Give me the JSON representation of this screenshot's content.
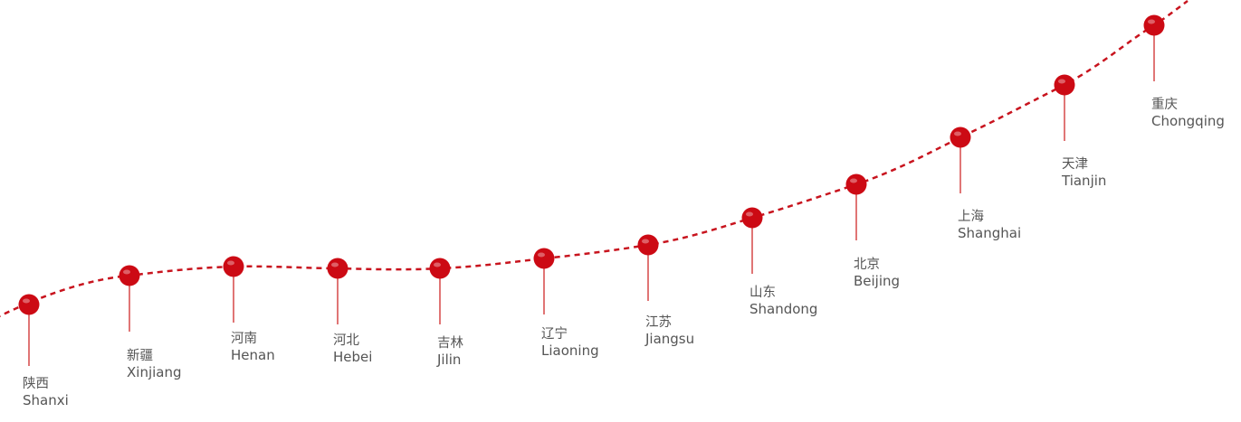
{
  "accent_color": "#cc0a14",
  "stops": [
    {
      "cn": "陕西",
      "en": "Shanxi"
    },
    {
      "cn": "新疆",
      "en": "Xinjiang"
    },
    {
      "cn": "河南",
      "en": "Henan"
    },
    {
      "cn": "河北",
      "en": "Hebei"
    },
    {
      "cn": "吉林",
      "en": "Jilin"
    },
    {
      "cn": "辽宁",
      "en": "Liaoning"
    },
    {
      "cn": "江苏",
      "en": "Jiangsu"
    },
    {
      "cn": "山东",
      "en": "Shandong"
    },
    {
      "cn": "北京",
      "en": "Beijing"
    },
    {
      "cn": "上海",
      "en": "Shanghai"
    },
    {
      "cn": "天津",
      "en": "Tianjin"
    },
    {
      "cn": "重庆",
      "en": "Chongqing"
    }
  ]
}
